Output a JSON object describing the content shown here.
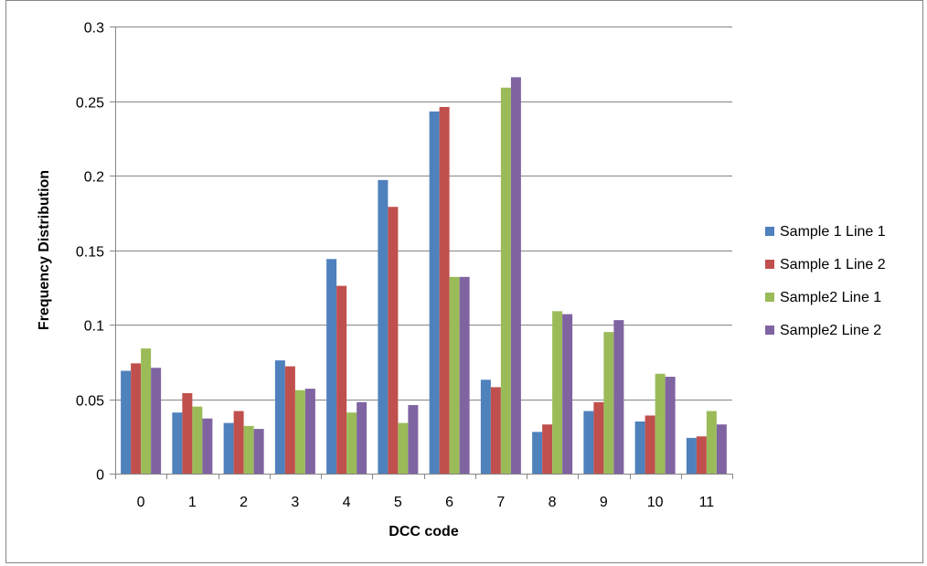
{
  "chart_data": {
    "type": "bar",
    "title": "",
    "xlabel": "DCC code",
    "ylabel": "Frequency Distribution",
    "ylim": [
      0,
      0.3
    ],
    "yticks": [
      "0",
      "0.05",
      "0.1",
      "0.15",
      "0.2",
      "0.25",
      "0.3"
    ],
    "ytick_values": [
      0,
      0.05,
      0.1,
      0.15,
      0.2,
      0.25,
      0.3
    ],
    "categories": [
      "0",
      "1",
      "2",
      "3",
      "4",
      "5",
      "6",
      "7",
      "8",
      "9",
      "10",
      "11"
    ],
    "grid": "horizontal",
    "legend_position": "right",
    "series": [
      {
        "name": "Sample 1 Line 1",
        "color": "#4F81BD",
        "values": [
          0.069,
          0.041,
          0.034,
          0.076,
          0.144,
          0.197,
          0.243,
          0.063,
          0.028,
          0.042,
          0.035,
          0.024
        ]
      },
      {
        "name": "Sample 1 Line 2",
        "color": "#C0504D",
        "values": [
          0.074,
          0.054,
          0.042,
          0.072,
          0.126,
          0.179,
          0.246,
          0.058,
          0.033,
          0.048,
          0.039,
          0.025
        ]
      },
      {
        "name": "Sample2 Line 1",
        "color": "#9BBB59",
        "values": [
          0.084,
          0.045,
          0.032,
          0.056,
          0.041,
          0.034,
          0.132,
          0.259,
          0.109,
          0.095,
          0.067,
          0.042
        ]
      },
      {
        "name": "Sample2 Line 2",
        "color": "#8064A2",
        "values": [
          0.071,
          0.037,
          0.03,
          0.057,
          0.048,
          0.046,
          0.132,
          0.266,
          0.107,
          0.103,
          0.065,
          0.033
        ]
      }
    ]
  }
}
